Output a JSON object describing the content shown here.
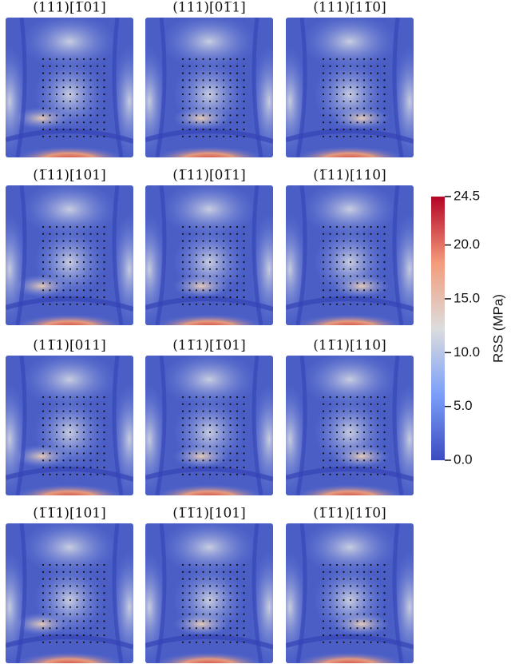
{
  "panels": [
    {
      "title": "(111)[1̅01]"
    },
    {
      "title": "(111)[01̅1]"
    },
    {
      "title": "(111)[11̅0]"
    },
    {
      "title": "(1̅11)[101]"
    },
    {
      "title": "(1̅11)[01̅1]"
    },
    {
      "title": "(1̅11)[110]"
    },
    {
      "title": "(11̅1)[011]"
    },
    {
      "title": "(11̅1)[1̅01]"
    },
    {
      "title": "(11̅1)[110]"
    },
    {
      "title": "(1̅1̅1)[101]"
    },
    {
      "title": "(1̅1̅1)[101]"
    },
    {
      "title": "(1̅1̅1)[11̅0]"
    }
  ],
  "colorbar": {
    "label": "RSS (MPa)",
    "lim": [
      0,
      24.5
    ],
    "ticks": [
      {
        "value": 0,
        "label": "0.0"
      },
      {
        "value": 5,
        "label": "5.0"
      },
      {
        "value": 10,
        "label": "10.0"
      },
      {
        "value": 15,
        "label": "15.0"
      },
      {
        "value": 20,
        "label": "20.0"
      },
      24.5
    ]
  }
}
